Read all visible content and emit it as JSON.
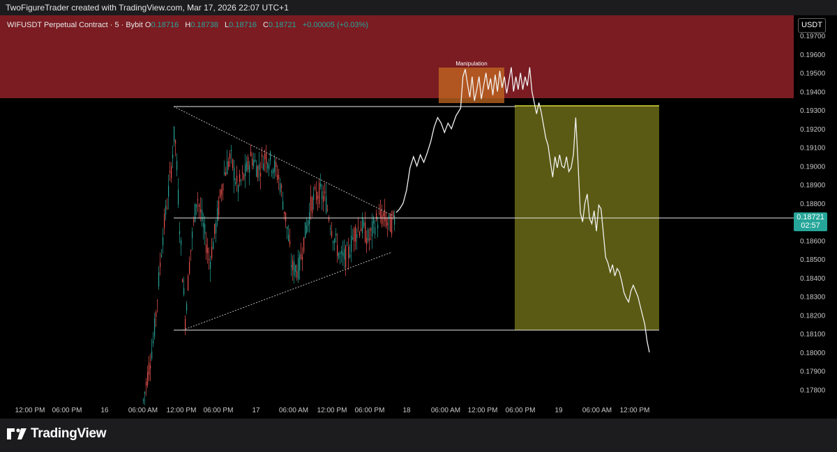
{
  "header": {
    "title": "TwoFigureTrader created with TradingView.com, Mar 17, 2026 22:07 UTC+1"
  },
  "symbol": {
    "name": "WIFUSDT Perpetual Contract · 5 · Bybit",
    "open_label": "O",
    "open": "0.18716",
    "high_label": "H",
    "high": "0.18738",
    "low_label": "L",
    "low": "0.18716",
    "close_label": "C",
    "close": "0.18721",
    "change": "+0.00005 (+0.03%)"
  },
  "currency": "USDT",
  "last_price": {
    "value": "0.18721",
    "countdown": "02:57"
  },
  "brand": "TradingView",
  "colors": {
    "up": "#26a69a",
    "down": "#ef5350",
    "supply_zone": "#7a1c22",
    "target_zone": "#5a5a14",
    "manipulation_box": "#c46a22"
  },
  "chart_data": {
    "type": "line",
    "title": "",
    "y_axis": {
      "ticks": [
        "0.19700",
        "0.19600",
        "0.19500",
        "0.19400",
        "0.19300",
        "0.19200",
        "0.19100",
        "0.19000",
        "0.18900",
        "0.18800",
        "0.18600",
        "0.18500",
        "0.18400",
        "0.18300",
        "0.18200",
        "0.18100",
        "0.18000",
        "0.17900",
        "0.17800"
      ],
      "range": [
        0.1775,
        0.1985
      ]
    },
    "x_axis": {
      "ticks": [
        "12:00 PM",
        "06:00 PM",
        "16",
        "06:00 AM",
        "12:00 PM",
        "06:00 PM",
        "17",
        "06:00 AM",
        "12:00 PM",
        "06:00 PM",
        "18",
        "06:00 AM",
        "12:00 PM",
        "06:00 PM",
        "19",
        "06:00 AM",
        "12:00 PM"
      ]
    },
    "annotations": [
      "Manipulation"
    ],
    "levels": {
      "triangle_top": 0.1931,
      "triangle_bottom": 0.1811,
      "triangle_apex": 0.1875,
      "current": 0.18721,
      "supply_zone_low": 0.1936
    },
    "projection_path": [
      [
        0,
        0.1875
      ],
      [
        3,
        0.1877
      ],
      [
        6,
        0.188
      ],
      [
        9,
        0.1887
      ],
      [
        12,
        0.1899
      ],
      [
        15,
        0.1905
      ],
      [
        18,
        0.19
      ],
      [
        21,
        0.1906
      ],
      [
        24,
        0.1902
      ],
      [
        27,
        0.1907
      ],
      [
        30,
        0.1913
      ],
      [
        33,
        0.1921
      ],
      [
        36,
        0.1926
      ],
      [
        39,
        0.1923
      ],
      [
        42,
        0.1918
      ],
      [
        45,
        0.1923
      ],
      [
        48,
        0.192
      ],
      [
        52,
        0.1927
      ],
      [
        56,
        0.1931
      ],
      [
        58,
        0.1948
      ],
      [
        60,
        0.1952
      ],
      [
        62,
        0.1944
      ],
      [
        64,
        0.1937
      ],
      [
        66,
        0.1948
      ],
      [
        68,
        0.1935
      ],
      [
        70,
        0.1941
      ],
      [
        72,
        0.1948
      ],
      [
        74,
        0.1936
      ],
      [
        76,
        0.1943
      ],
      [
        78,
        0.195
      ],
      [
        80,
        0.1941
      ],
      [
        82,
        0.1947
      ],
      [
        84,
        0.1938
      ],
      [
        86,
        0.1949
      ],
      [
        88,
        0.194
      ],
      [
        90,
        0.1951
      ],
      [
        92,
        0.1942
      ],
      [
        94,
        0.1948
      ],
      [
        96,
        0.1939
      ],
      [
        98,
        0.1946
      ],
      [
        100,
        0.1953
      ],
      [
        102,
        0.194
      ],
      [
        104,
        0.1948
      ],
      [
        106,
        0.1941
      ],
      [
        108,
        0.195
      ],
      [
        110,
        0.1941
      ],
      [
        112,
        0.1948
      ],
      [
        114,
        0.1943
      ],
      [
        116,
        0.1953
      ],
      [
        118,
        0.194
      ],
      [
        120,
        0.1934
      ],
      [
        122,
        0.1928
      ],
      [
        124,
        0.1934
      ],
      [
        126,
        0.1929
      ],
      [
        128,
        0.1922
      ],
      [
        130,
        0.1915
      ],
      [
        132,
        0.1911
      ],
      [
        134,
        0.1902
      ],
      [
        136,
        0.1894
      ],
      [
        138,
        0.1905
      ],
      [
        140,
        0.1899
      ],
      [
        142,
        0.1906
      ],
      [
        144,
        0.19
      ],
      [
        146,
        0.1899
      ],
      [
        148,
        0.1905
      ],
      [
        150,
        0.1897
      ],
      [
        152,
        0.1899
      ],
      [
        154,
        0.1906
      ],
      [
        156,
        0.1926
      ],
      [
        158,
        0.1902
      ],
      [
        160,
        0.1875
      ],
      [
        162,
        0.187
      ],
      [
        164,
        0.188
      ],
      [
        166,
        0.1885
      ],
      [
        168,
        0.1872
      ],
      [
        170,
        0.1869
      ],
      [
        172,
        0.1876
      ],
      [
        174,
        0.1865
      ],
      [
        176,
        0.1879
      ],
      [
        178,
        0.1877
      ],
      [
        180,
        0.1864
      ],
      [
        182,
        0.1851
      ],
      [
        184,
        0.1848
      ],
      [
        186,
        0.1843
      ],
      [
        188,
        0.1847
      ],
      [
        190,
        0.1841
      ],
      [
        192,
        0.1845
      ],
      [
        194,
        0.1843
      ],
      [
        196,
        0.1838
      ],
      [
        198,
        0.1832
      ],
      [
        200,
        0.1829
      ],
      [
        202,
        0.1827
      ],
      [
        204,
        0.1833
      ],
      [
        206,
        0.1836
      ],
      [
        208,
        0.1833
      ],
      [
        210,
        0.183
      ],
      [
        212,
        0.1825
      ],
      [
        214,
        0.182
      ],
      [
        216,
        0.1815
      ],
      [
        218,
        0.1806
      ],
      [
        220,
        0.18
      ]
    ]
  }
}
